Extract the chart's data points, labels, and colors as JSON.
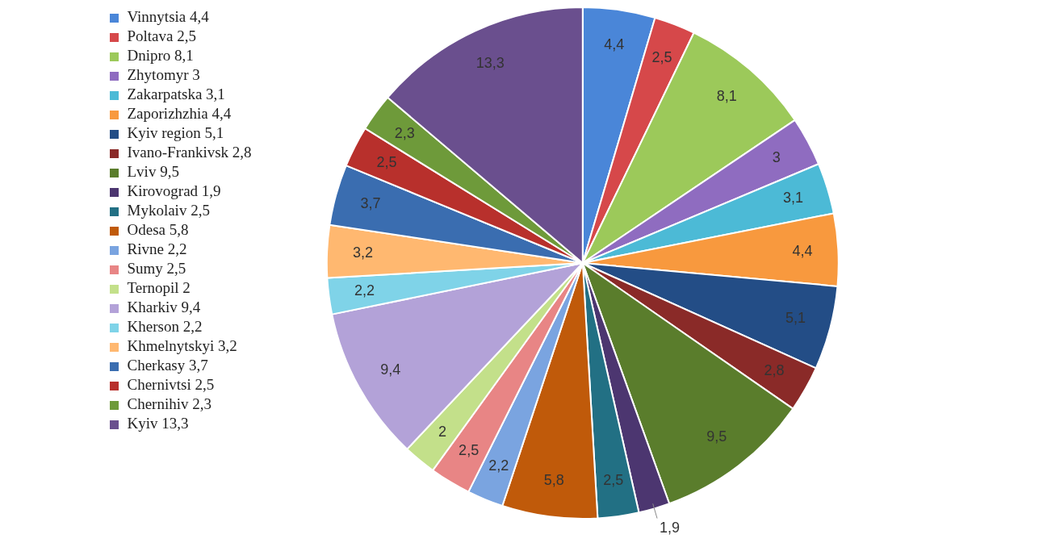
{
  "chart_data": {
    "type": "pie",
    "categories": [
      "Vinnytsia 4,4",
      "Poltava 2,5",
      "Dnipro 8,1",
      "Zhytomyr 3",
      "Zakarpatska 3,1",
      "Zaporizhzhia 4,4",
      "Kyiv region 5,1",
      "Ivano-Frankivsk 2,8",
      "Lviv 9,5",
      "Kirovograd 1,9",
      "Mykolaiv 2,5",
      "Odesa 5,8",
      "Rivne 2,2",
      "Sumy 2,5",
      "Ternopil 2",
      "Kharkiv 9,4",
      "Kherson 2,2",
      "Khmelnytskyi 3,2",
      "Cherkasy 3,7",
      "Chernivtsi 2,5",
      "Chernihiv 2,3",
      "Kyiv 13,3"
    ],
    "values": [
      4.4,
      2.5,
      8.1,
      3,
      3.1,
      4.4,
      5.1,
      2.8,
      9.5,
      1.9,
      2.5,
      5.8,
      2.2,
      2.5,
      2,
      9.4,
      2.2,
      3.2,
      3.7,
      2.5,
      2.3,
      13.3
    ],
    "value_labels": [
      "4,4",
      "2,5",
      "8,1",
      "3",
      "3,1",
      "4,4",
      "5,1",
      "2,8",
      "9,5",
      "1,9",
      "2,5",
      "5,8",
      "2,2",
      "2,5",
      "2",
      "9,4",
      "2,2",
      "3,2",
      "3,7",
      "2,5",
      "2,3",
      "13,3"
    ],
    "colors": [
      "#4a86d8",
      "#d6484a",
      "#9cc95a",
      "#8f6cc0",
      "#4cbad6",
      "#f8993e",
      "#234d86",
      "#8a2a28",
      "#5a7d2c",
      "#4c3670",
      "#227084",
      "#c05a0a",
      "#7aa4e0",
      "#e88585",
      "#c3e08a",
      "#b3a2d8",
      "#7fd3e8",
      "#ffb870",
      "#3a6db0",
      "#b8302c",
      "#6e9a3a",
      "#6a4f8e"
    ],
    "legend": "left"
  }
}
